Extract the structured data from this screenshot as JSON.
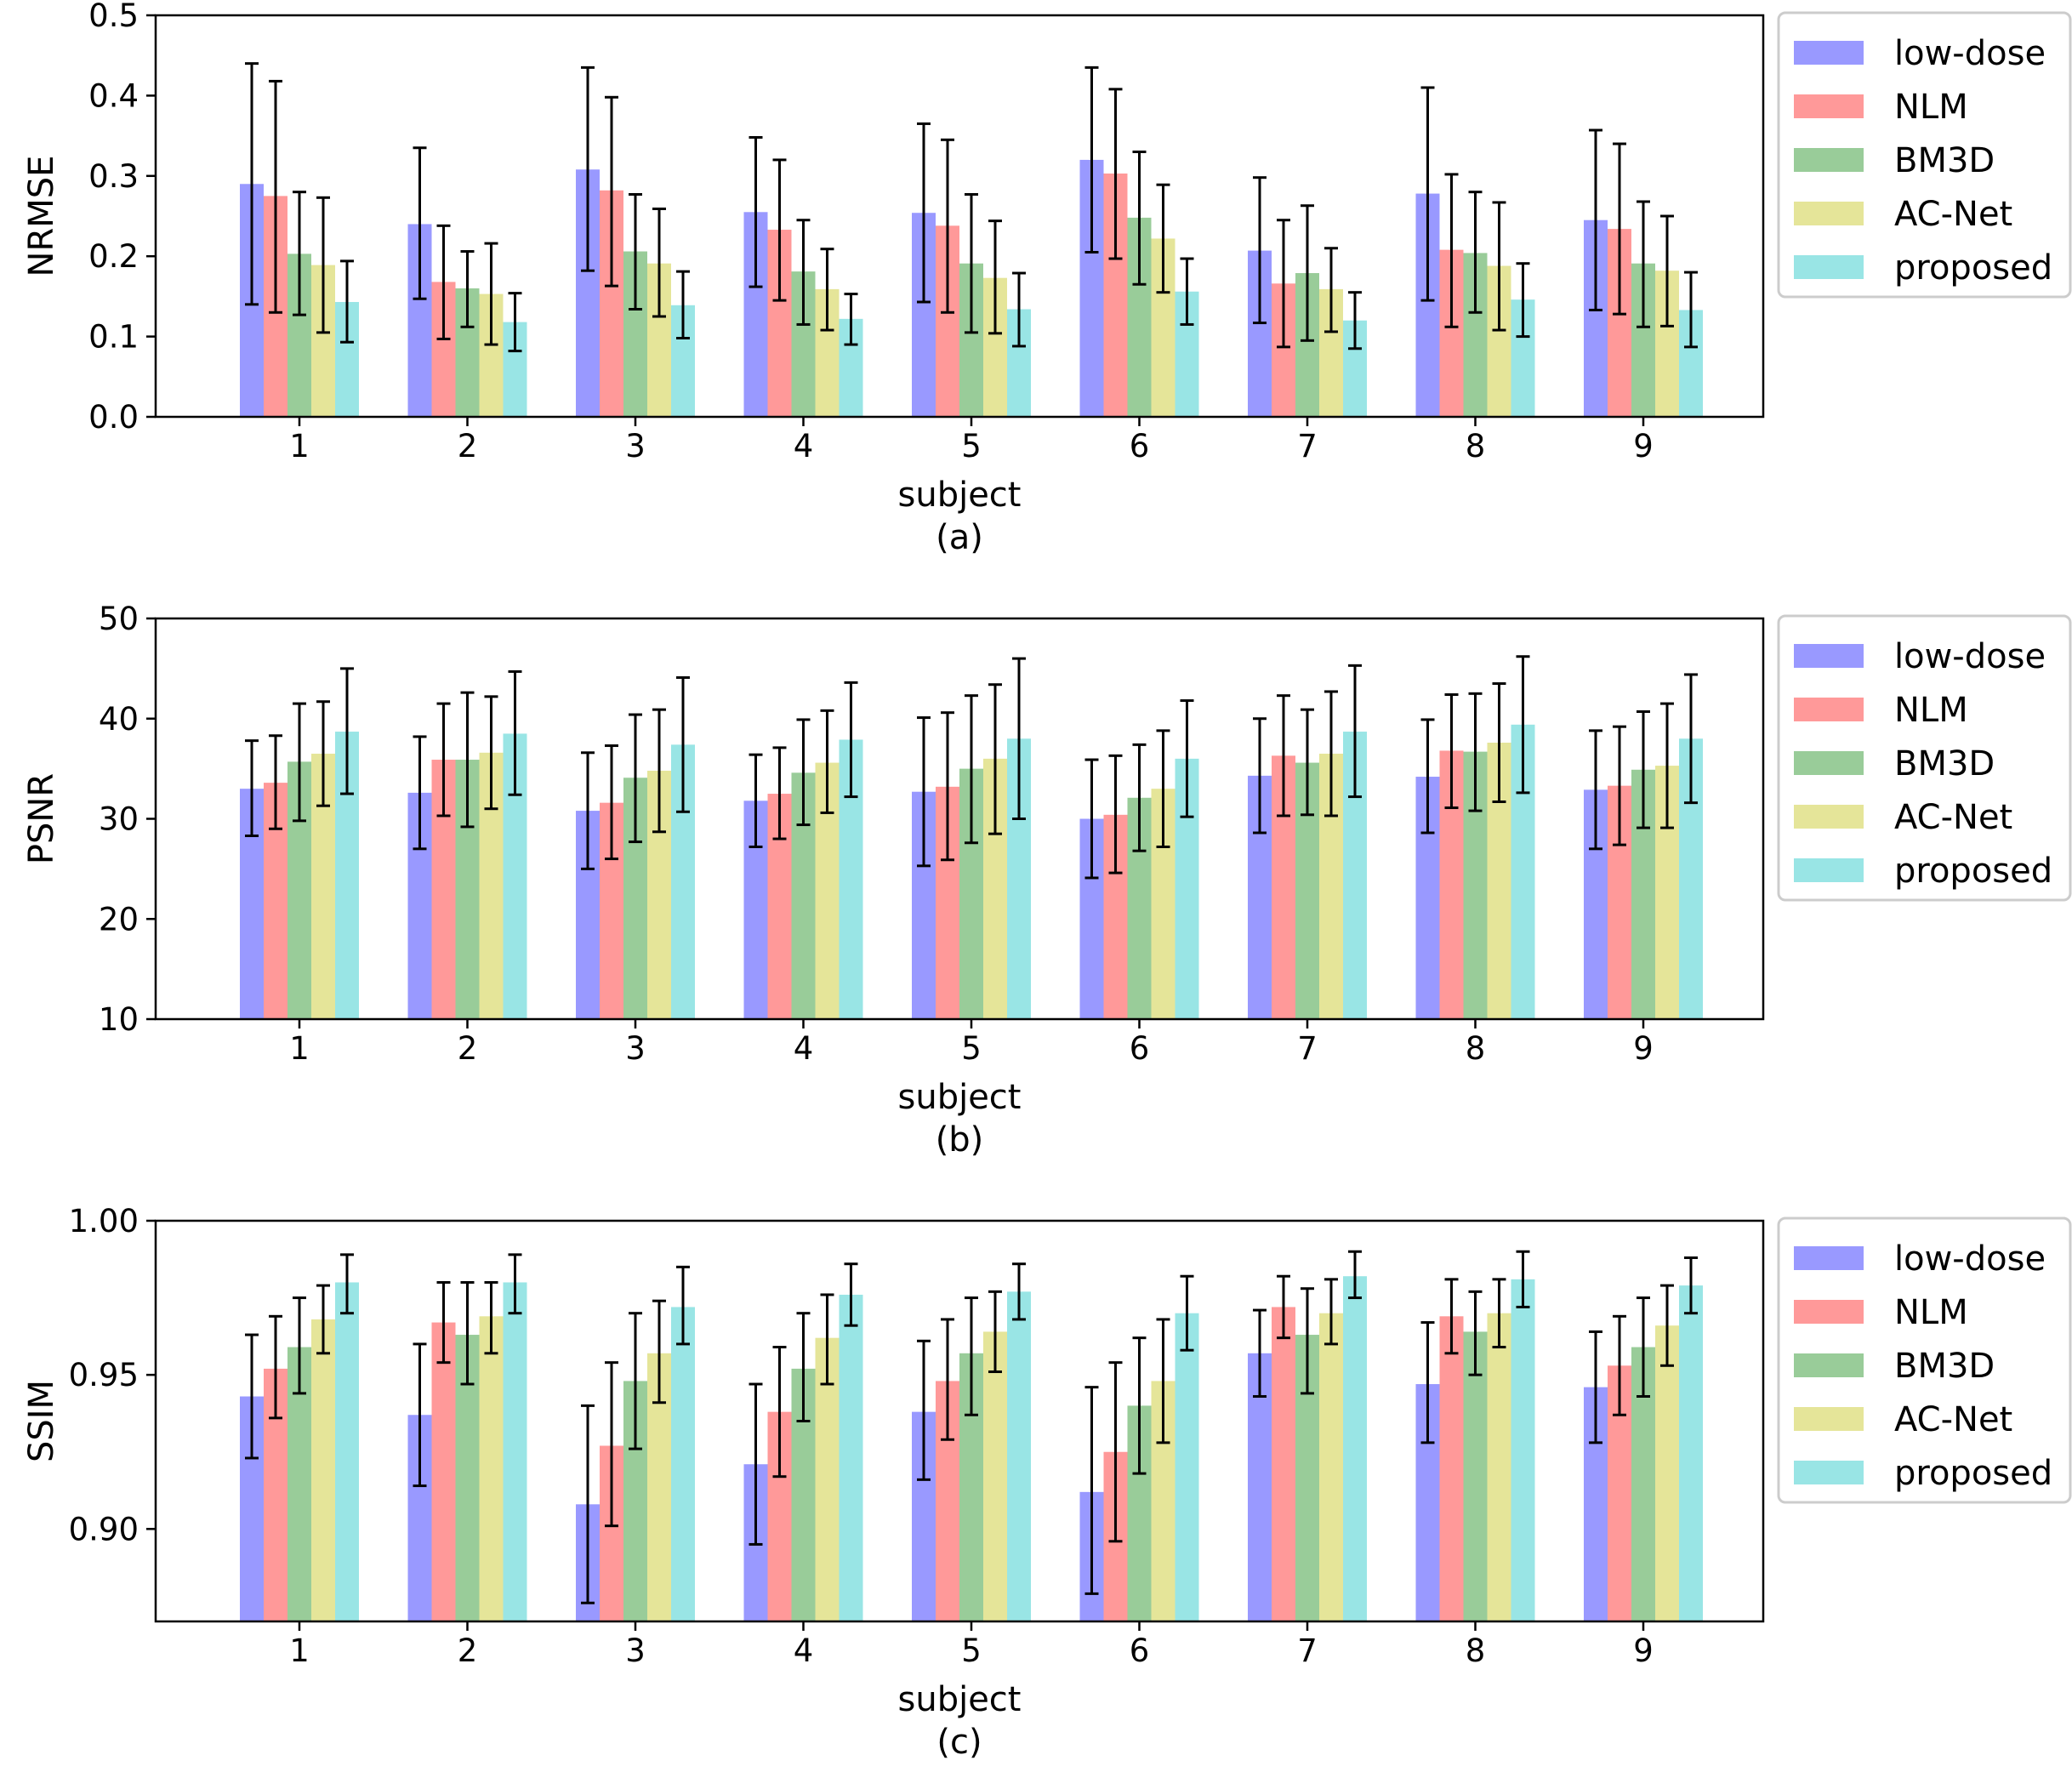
{
  "legend_labels": [
    "low-dose",
    "NLM",
    "BM3D",
    "AC-Net",
    "proposed"
  ],
  "series_colors": [
    "#9999ff",
    "#ff9999",
    "#99cc99",
    "#e5e599",
    "#99e5e5"
  ],
  "chart_data": [
    {
      "type": "bar",
      "panel_label": "(a)",
      "xlabel": "subject",
      "ylabel": "NRMSE",
      "categories": [
        "1",
        "2",
        "3",
        "4",
        "5",
        "6",
        "7",
        "8",
        "9"
      ],
      "ylim": [
        0,
        0.5
      ],
      "yticks": [
        "0.0",
        "0.1",
        "0.2",
        "0.3",
        "0.4",
        "0.5"
      ],
      "ytick_values": [
        0,
        0.1,
        0.2,
        0.3,
        0.4,
        0.5
      ],
      "legend_position": "outside-right-top",
      "series": [
        {
          "name": "low-dose",
          "values": [
            0.29,
            0.24,
            0.308,
            0.255,
            0.254,
            0.32,
            0.207,
            0.278,
            0.245
          ],
          "err_low": [
            0.14,
            0.147,
            0.182,
            0.162,
            0.143,
            0.205,
            0.117,
            0.145,
            0.133
          ],
          "err_high": [
            0.44,
            0.335,
            0.435,
            0.348,
            0.365,
            0.435,
            0.298,
            0.41,
            0.357
          ]
        },
        {
          "name": "NLM",
          "values": [
            0.275,
            0.168,
            0.282,
            0.233,
            0.238,
            0.303,
            0.166,
            0.208,
            0.234
          ],
          "err_low": [
            0.13,
            0.097,
            0.163,
            0.145,
            0.13,
            0.197,
            0.087,
            0.112,
            0.128
          ],
          "err_high": [
            0.418,
            0.238,
            0.398,
            0.32,
            0.345,
            0.408,
            0.245,
            0.302,
            0.34
          ]
        },
        {
          "name": "BM3D",
          "values": [
            0.203,
            0.16,
            0.206,
            0.181,
            0.191,
            0.248,
            0.179,
            0.204,
            0.191
          ],
          "err_low": [
            0.127,
            0.112,
            0.134,
            0.115,
            0.105,
            0.165,
            0.095,
            0.13,
            0.112
          ],
          "err_high": [
            0.28,
            0.206,
            0.277,
            0.245,
            0.277,
            0.33,
            0.263,
            0.28,
            0.268
          ]
        },
        {
          "name": "AC-Net",
          "values": [
            0.189,
            0.153,
            0.191,
            0.159,
            0.173,
            0.222,
            0.159,
            0.188,
            0.182
          ],
          "err_low": [
            0.105,
            0.09,
            0.125,
            0.108,
            0.104,
            0.155,
            0.106,
            0.108,
            0.113
          ],
          "err_high": [
            0.273,
            0.216,
            0.259,
            0.209,
            0.244,
            0.289,
            0.21,
            0.267,
            0.25
          ]
        },
        {
          "name": "proposed",
          "values": [
            0.143,
            0.118,
            0.139,
            0.122,
            0.134,
            0.156,
            0.12,
            0.146,
            0.133
          ],
          "err_low": [
            0.093,
            0.082,
            0.098,
            0.09,
            0.088,
            0.115,
            0.085,
            0.1,
            0.087
          ],
          "err_high": [
            0.194,
            0.154,
            0.181,
            0.153,
            0.179,
            0.197,
            0.155,
            0.191,
            0.18
          ]
        }
      ]
    },
    {
      "type": "bar",
      "panel_label": "(b)",
      "xlabel": "subject",
      "ylabel": "PSNR",
      "categories": [
        "1",
        "2",
        "3",
        "4",
        "5",
        "6",
        "7",
        "8",
        "9"
      ],
      "ylim": [
        10,
        50
      ],
      "yticks": [
        "10",
        "20",
        "30",
        "40",
        "50"
      ],
      "ytick_values": [
        10,
        20,
        30,
        40,
        50
      ],
      "legend_position": "outside-right-top",
      "series": [
        {
          "name": "low-dose",
          "values": [
            33.0,
            32.6,
            30.8,
            31.8,
            32.7,
            30.0,
            34.3,
            34.2,
            32.9
          ],
          "err_low": [
            28.3,
            27.0,
            25.0,
            27.2,
            25.3,
            24.1,
            28.6,
            28.6,
            27.0
          ],
          "err_high": [
            37.8,
            38.2,
            36.6,
            36.4,
            40.1,
            35.9,
            40.0,
            39.9,
            38.8
          ]
        },
        {
          "name": "NLM",
          "values": [
            33.6,
            35.9,
            31.6,
            32.5,
            33.2,
            30.4,
            36.3,
            36.8,
            33.3
          ],
          "err_low": [
            29.0,
            30.3,
            26.0,
            28.0,
            25.9,
            24.6,
            30.3,
            31.1,
            27.4
          ],
          "err_high": [
            38.3,
            41.5,
            37.3,
            37.1,
            40.6,
            36.3,
            42.3,
            42.4,
            39.2
          ]
        },
        {
          "name": "BM3D",
          "values": [
            35.7,
            35.9,
            34.1,
            34.6,
            35.0,
            32.1,
            35.6,
            36.7,
            34.9
          ],
          "err_low": [
            29.8,
            29.2,
            27.7,
            29.4,
            27.6,
            26.8,
            30.4,
            30.8,
            29.1
          ],
          "err_high": [
            41.5,
            42.6,
            40.4,
            39.9,
            42.3,
            37.4,
            40.9,
            42.5,
            40.7
          ]
        },
        {
          "name": "AC-Net",
          "values": [
            36.5,
            36.6,
            34.8,
            35.6,
            36.0,
            33.0,
            36.5,
            37.6,
            35.3
          ],
          "err_low": [
            31.3,
            31.0,
            28.7,
            30.6,
            28.5,
            27.2,
            30.3,
            31.7,
            29.1
          ],
          "err_high": [
            41.7,
            42.2,
            40.9,
            40.8,
            43.4,
            38.8,
            42.7,
            43.5,
            41.5
          ]
        },
        {
          "name": "proposed",
          "values": [
            38.7,
            38.5,
            37.4,
            37.9,
            38.0,
            36.0,
            38.7,
            39.4,
            38.0
          ],
          "err_low": [
            32.5,
            32.4,
            30.7,
            32.2,
            30.0,
            30.2,
            32.2,
            32.6,
            31.6
          ],
          "err_high": [
            45.0,
            44.7,
            44.1,
            43.6,
            46.0,
            41.8,
            45.3,
            46.2,
            44.4
          ]
        }
      ]
    },
    {
      "type": "bar",
      "panel_label": "(c)",
      "xlabel": "subject",
      "ylabel": "SSIM",
      "categories": [
        "1",
        "2",
        "3",
        "4",
        "5",
        "6",
        "7",
        "8",
        "9"
      ],
      "ylim": [
        0.87,
        1.0
      ],
      "yticks": [
        "0.90",
        "0.95",
        "1.00"
      ],
      "ytick_values": [
        0.9,
        0.95,
        1.0
      ],
      "legend_position": "outside-right-top",
      "series": [
        {
          "name": "low-dose",
          "values": [
            0.943,
            0.937,
            0.908,
            0.921,
            0.938,
            0.912,
            0.957,
            0.947,
            0.946
          ],
          "err_low": [
            0.923,
            0.914,
            0.876,
            0.895,
            0.916,
            0.879,
            0.943,
            0.928,
            0.928
          ],
          "err_high": [
            0.963,
            0.96,
            0.94,
            0.947,
            0.961,
            0.946,
            0.971,
            0.967,
            0.964
          ]
        },
        {
          "name": "NLM",
          "values": [
            0.952,
            0.967,
            0.927,
            0.938,
            0.948,
            0.925,
            0.972,
            0.969,
            0.953
          ],
          "err_low": [
            0.936,
            0.954,
            0.901,
            0.917,
            0.929,
            0.896,
            0.962,
            0.957,
            0.937
          ],
          "err_high": [
            0.969,
            0.98,
            0.954,
            0.959,
            0.968,
            0.954,
            0.982,
            0.981,
            0.969
          ]
        },
        {
          "name": "BM3D",
          "values": [
            0.959,
            0.963,
            0.948,
            0.952,
            0.957,
            0.94,
            0.963,
            0.964,
            0.959
          ],
          "err_low": [
            0.944,
            0.947,
            0.926,
            0.935,
            0.937,
            0.918,
            0.944,
            0.95,
            0.943
          ],
          "err_high": [
            0.975,
            0.98,
            0.97,
            0.97,
            0.975,
            0.962,
            0.978,
            0.977,
            0.975
          ]
        },
        {
          "name": "AC-Net",
          "values": [
            0.968,
            0.969,
            0.957,
            0.962,
            0.964,
            0.948,
            0.97,
            0.97,
            0.966
          ],
          "err_low": [
            0.957,
            0.957,
            0.941,
            0.947,
            0.951,
            0.928,
            0.96,
            0.959,
            0.953
          ],
          "err_high": [
            0.979,
            0.98,
            0.974,
            0.976,
            0.977,
            0.968,
            0.981,
            0.981,
            0.979
          ]
        },
        {
          "name": "proposed",
          "values": [
            0.98,
            0.98,
            0.972,
            0.976,
            0.977,
            0.97,
            0.982,
            0.981,
            0.979
          ],
          "err_low": [
            0.97,
            0.97,
            0.96,
            0.966,
            0.968,
            0.958,
            0.975,
            0.972,
            0.97
          ],
          "err_high": [
            0.989,
            0.989,
            0.985,
            0.986,
            0.986,
            0.982,
            0.99,
            0.99,
            0.988
          ]
        }
      ]
    }
  ]
}
